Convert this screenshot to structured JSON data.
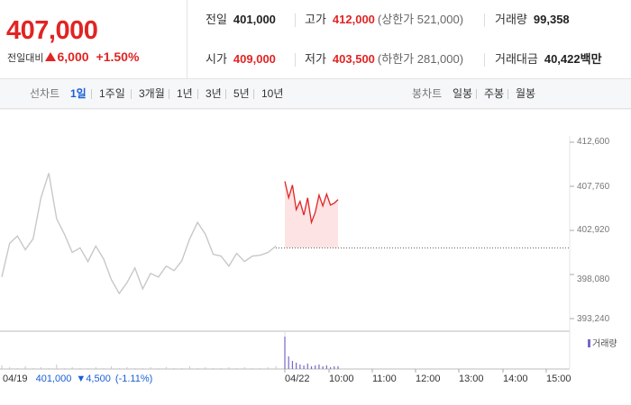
{
  "summary": {
    "price": "407,000",
    "change_label": "전일대비",
    "change_value": "6,000",
    "change_percent": "+1.50%",
    "prev_close_label": "전일",
    "prev_close": "401,000",
    "high_label": "고가",
    "high": "412,000",
    "upper_limit": "(상한가 521,000)",
    "volume_label": "거래량",
    "volume": "99,358",
    "open_label": "시가",
    "open": "409,000",
    "low_label": "저가",
    "low": "403,500",
    "lower_limit": "(하한가 281,000)",
    "amount_label": "거래대금",
    "amount": "40,422",
    "amount_unit": "백만"
  },
  "tabs": {
    "line_chart_label": "선차트",
    "line_tabs": [
      "1일",
      "1주일",
      "3개월",
      "1년",
      "3년",
      "5년",
      "10년"
    ],
    "active_tab": "1일",
    "candle_chart_label": "봉차트",
    "candle_tabs": [
      "일봉",
      "주봉",
      "월봉"
    ]
  },
  "colors": {
    "up": "#e12424",
    "down": "#1a5fd6",
    "active_tab": "#1a5fd6",
    "prev_day_line": "#c8c8c8",
    "volume": "#7b68c7"
  },
  "chart_data": {
    "type": "line",
    "y_ticks": [
      "412,600",
      "407,760",
      "402,920",
      "398,080",
      "393,240"
    ],
    "ylim": [
      393240,
      412600
    ],
    "x_ticks": [
      "04/22",
      "10:00",
      "11:00",
      "12:00",
      "13:00",
      "14:00",
      "15:00"
    ],
    "prev_day": {
      "date": "04/19",
      "close": "401,000",
      "change": "4,500",
      "change_percent": "(-1.11%)",
      "values": [
        397800,
        401500,
        402300,
        400800,
        402000,
        406500,
        409200,
        404200,
        402500,
        400500,
        401000,
        399500,
        401200,
        399800,
        397500,
        396000,
        397200,
        398800,
        396500,
        398200,
        397800,
        399000,
        398500,
        399600,
        402000,
        403800,
        402500,
        400300,
        400100,
        399000,
        400400,
        399500,
        400100,
        400200,
        400500,
        401200
      ]
    },
    "today": {
      "values": [
        408300,
        406500,
        407900,
        405200,
        406100,
        404600,
        406500,
        403800,
        404900,
        406800,
        405600,
        406900,
        405700,
        405900,
        406300
      ],
      "base": 401000
    },
    "volume_legend": "거래량",
    "volume_prev": [
      4,
      2,
      1,
      3,
      1,
      2,
      1,
      5,
      1,
      2,
      1,
      1,
      2,
      1,
      3,
      1,
      2,
      1,
      1,
      2,
      1,
      2,
      1,
      1,
      3,
      1,
      2,
      1,
      1,
      2,
      1,
      2,
      1,
      1,
      2,
      3
    ],
    "volume_today": [
      36,
      14,
      9,
      7,
      5,
      4,
      6,
      3,
      4,
      5,
      3,
      4,
      2,
      3,
      3
    ]
  }
}
